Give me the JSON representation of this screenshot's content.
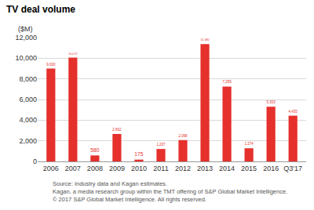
{
  "chart_data": {
    "type": "bar",
    "title": "TV deal volume",
    "ylabel": "($M)",
    "categories": [
      "2006",
      "2007",
      "2008",
      "2009",
      "2010",
      "2011",
      "2012",
      "2013",
      "2014",
      "2015",
      "2016",
      "Q3'17"
    ],
    "values": [
      9000,
      10072,
      580,
      2662,
      175,
      1207,
      2068,
      11380,
      7259,
      1274,
      5303,
      4435
    ],
    "value_labels": [
      "9,000",
      "10,072",
      "580",
      "2,662",
      "175",
      "1,207",
      "2,068",
      "11,380",
      "7,259",
      "1,274",
      "5,303",
      "4,435"
    ],
    "data_labels": true,
    "color": "#e5302c",
    "ylim": [
      0,
      12000
    ],
    "yticks": [
      0,
      {
        "value": 2000,
        "label": "2,000"
      },
      {
        "value": 4000,
        "label": "4,000"
      },
      {
        "value": 6000,
        "label": "6,000"
      },
      {
        "value": 8000,
        "label": "8,000"
      },
      {
        "value": 10000,
        "label": "10,000"
      },
      {
        "value": 12000,
        "label": "12,000"
      }
    ],
    "grid": true,
    "annotations": [
      "Source: Industry data and Kagan estimates.",
      "Kagan, a media research group within the TMT offering of S&P Global Market Intelligence.",
      "© 2017 S&P Global Market Intelligence. All rights reserved."
    ]
  }
}
